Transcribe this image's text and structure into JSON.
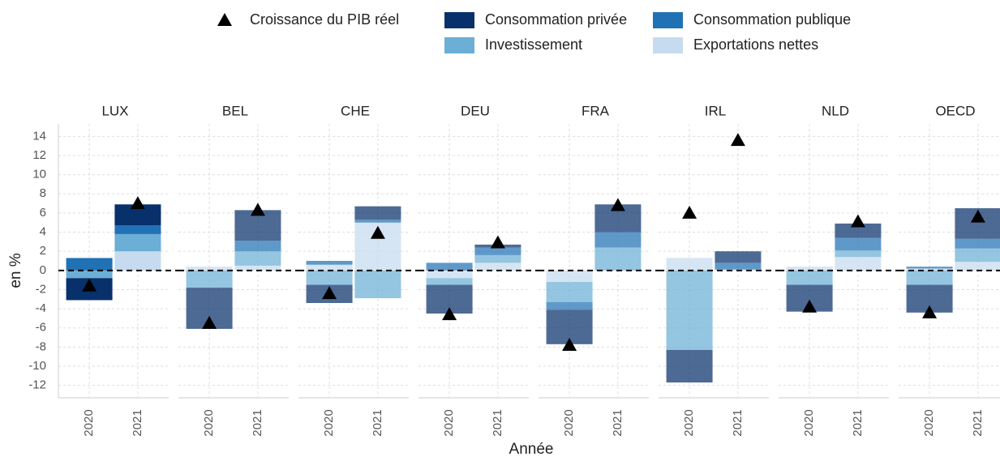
{
  "chart_data": {
    "type": "bar",
    "stacked": true,
    "ylabel": "en %",
    "xlabel": "Année",
    "panels": [
      "LUX",
      "BEL",
      "CHE",
      "DEU",
      "FRA",
      "IRL",
      "NLD",
      "OECD"
    ],
    "highlight": "LUX",
    "highlight_color": "#d62728",
    "categories": [
      "2020",
      "2021"
    ],
    "ylim": [
      -13.3,
      15.3
    ],
    "yticks": [
      -12,
      -10,
      -8,
      -6,
      -4,
      -2,
      0,
      2,
      4,
      6,
      8,
      10,
      12,
      14
    ],
    "grid": true,
    "markers": {
      "name": "Croissance du PIB réel",
      "color": "#000000",
      "shape": "triangle",
      "values": [
        [
          -1.6,
          7.0
        ],
        [
          -5.5,
          6.3
        ],
        [
          -2.4,
          3.9
        ],
        [
          -4.6,
          2.9
        ],
        [
          -7.8,
          6.8
        ],
        [
          6.0,
          13.6
        ],
        [
          -3.8,
          5.1
        ],
        [
          -4.4,
          5.6
        ]
      ]
    },
    "series": [
      {
        "name": "Consommation privée",
        "color": "#08306b",
        "values": [
          [
            -2.3,
            2.2
          ],
          [
            -4.3,
            3.2
          ],
          [
            -1.9,
            1.4
          ],
          [
            -3.0,
            0.3
          ],
          [
            -3.6,
            2.9
          ],
          [
            -3.4,
            1.2
          ],
          [
            -2.8,
            1.5
          ],
          [
            -2.9,
            3.2
          ]
        ]
      },
      {
        "name": "Consommation publique",
        "color": "#2171b5",
        "values": [
          [
            1.3,
            0.9
          ],
          [
            0,
            1.1
          ],
          [
            0.4,
            0.3
          ],
          [
            0.8,
            0.8
          ],
          [
            -0.8,
            1.6
          ],
          [
            0,
            0.7
          ],
          [
            0,
            1.3
          ],
          [
            0.2,
            1.0
          ]
        ]
      },
      {
        "name": "Investissement",
        "color": "#6baed6",
        "values": [
          [
            -0.8,
            1.8
          ],
          [
            -1.8,
            1.5
          ],
          [
            -1.5,
            -2.9
          ],
          [
            -0.7,
            0.8
          ],
          [
            -2.1,
            2.4
          ],
          [
            -8.3,
            0
          ],
          [
            -1.5,
            0.7
          ],
          [
            -1.5,
            1.4
          ]
        ]
      },
      {
        "name": "Exportations nettes",
        "color": "#c6dbef",
        "values": [
          [
            0,
            2.0
          ],
          [
            0.4,
            0.5
          ],
          [
            0.6,
            5.0
          ],
          [
            -0.8,
            0.8
          ],
          [
            -1.2,
            0
          ],
          [
            1.3,
            0.1
          ],
          [
            0.4,
            1.4
          ],
          [
            0.2,
            0.9
          ]
        ]
      }
    ]
  }
}
